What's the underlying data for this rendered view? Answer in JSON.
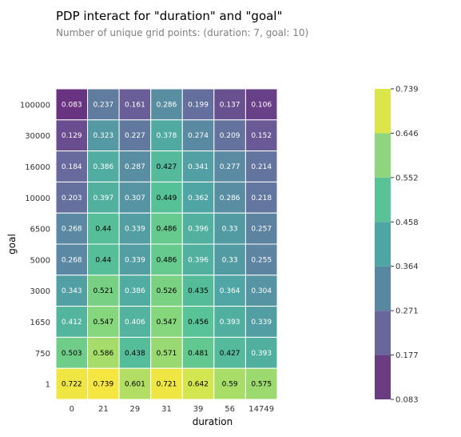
{
  "chart_data": {
    "type": "heatmap",
    "title": "PDP interact for \"duration\" and \"goal\"",
    "subtitle": "Number of unique grid points: (duration: 7, goal: 10)",
    "xlabel": "duration",
    "ylabel": "goal",
    "x": [
      "0",
      "21",
      "29",
      "31",
      "39",
      "56",
      "14749"
    ],
    "y": [
      "100000",
      "30000",
      "16000",
      "10000",
      "6500",
      "5000",
      "3000",
      "1650",
      "750",
      "1"
    ],
    "values": [
      [
        "0.083",
        "0.237",
        "0.161",
        "0.286",
        "0.199",
        "0.137",
        "0.106"
      ],
      [
        "0.129",
        "0.323",
        "0.227",
        "0.378",
        "0.274",
        "0.209",
        "0.152"
      ],
      [
        "0.184",
        "0.386",
        "0.287",
        "0.427",
        "0.341",
        "0.277",
        "0.214"
      ],
      [
        "0.203",
        "0.397",
        "0.307",
        "0.449",
        "0.362",
        "0.286",
        "0.218"
      ],
      [
        "0.268",
        "0.44",
        "0.339",
        "0.486",
        "0.396",
        "0.33",
        "0.257"
      ],
      [
        "0.268",
        "0.44",
        "0.339",
        "0.486",
        "0.396",
        "0.33",
        "0.255"
      ],
      [
        "0.343",
        "0.521",
        "0.386",
        "0.526",
        "0.435",
        "0.364",
        "0.304"
      ],
      [
        "0.412",
        "0.547",
        "0.406",
        "0.547",
        "0.456",
        "0.393",
        "0.339"
      ],
      [
        "0.503",
        "0.586",
        "0.438",
        "0.571",
        "0.481",
        "0.427",
        "0.393"
      ],
      [
        "0.722",
        "0.739",
        "0.601",
        "0.721",
        "0.642",
        "0.59",
        "0.575"
      ]
    ],
    "colorbar": {
      "ticks": [
        "0.083",
        "0.177",
        "0.271",
        "0.364",
        "0.458",
        "0.552",
        "0.646",
        "0.739"
      ],
      "colors": [
        "#6a3d83",
        "#69669c",
        "#5888a0",
        "#4ea5a4",
        "#57c397",
        "#8dd67d",
        "#dae64a"
      ]
    },
    "colormap": "viridis",
    "vmin": 0.083,
    "vmax": 0.739
  }
}
